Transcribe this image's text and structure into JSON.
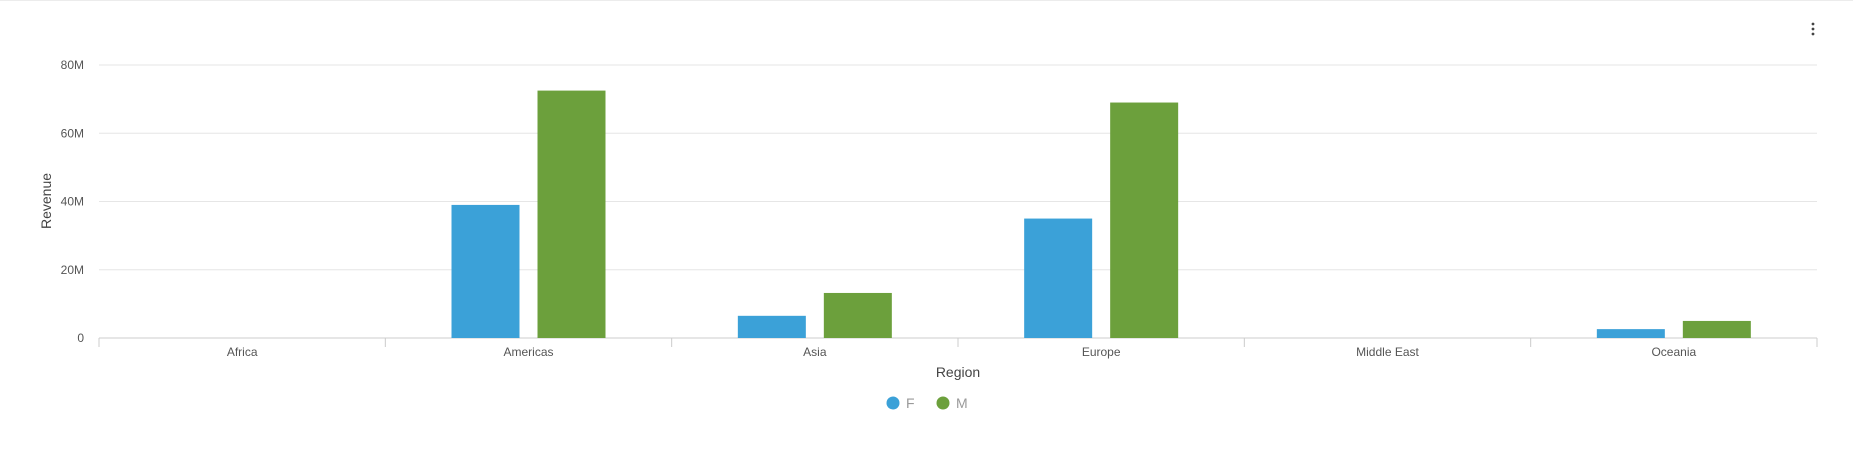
{
  "chart_data": {
    "type": "bar",
    "categories": [
      "Africa",
      "Americas",
      "Asia",
      "Europe",
      "Middle East",
      "Oceania"
    ],
    "series": [
      {
        "name": "F",
        "color": "#3ba1d8",
        "values": [
          0,
          39,
          6.5,
          35,
          0,
          2.6
        ]
      },
      {
        "name": "M",
        "color": "#6ca03c",
        "values": [
          0,
          72.5,
          13.2,
          69,
          0,
          5
        ]
      }
    ],
    "xlabel": "Region",
    "ylabel": "Revenue",
    "ylim": [
      0,
      80
    ],
    "yticks": [
      {
        "value": 0,
        "label": "0"
      },
      {
        "value": 20,
        "label": "20M"
      },
      {
        "value": 40,
        "label": "40M"
      },
      {
        "value": 60,
        "label": "60M"
      },
      {
        "value": 80,
        "label": "80M"
      }
    ],
    "grid": true,
    "legend_position": "bottom-center",
    "unit": "M"
  },
  "toolbar": {
    "menu_icon": "more-vert-icon"
  }
}
